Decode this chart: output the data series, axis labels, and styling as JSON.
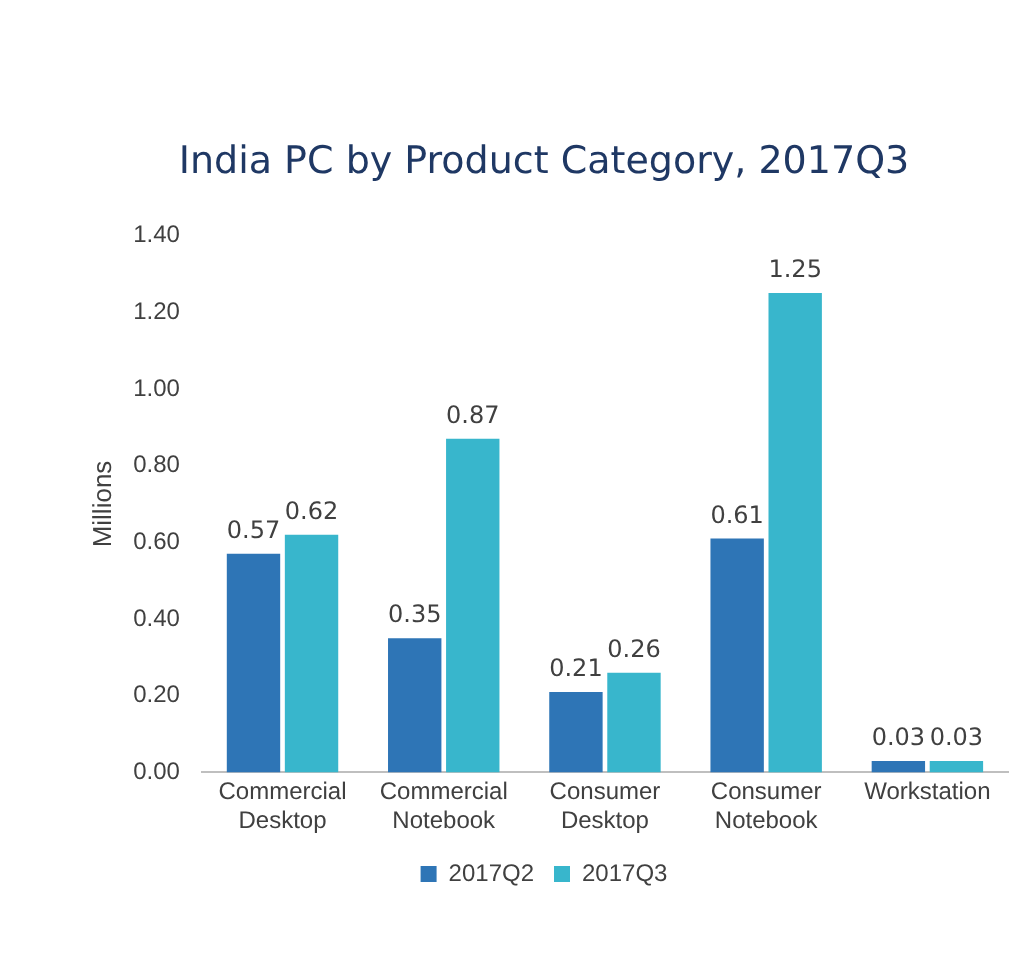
{
  "chart_data": {
    "type": "bar",
    "title": "India PC by Product Category, 2017Q3",
    "ylabel": "Millions",
    "categories": [
      "Commercial Desktop",
      "Commercial Notebook",
      "Consumer Desktop",
      "Consumer Notebook",
      "Workstation"
    ],
    "series": [
      {
        "name": "2017Q2",
        "color": "#2e75b6",
        "values": [
          0.57,
          0.35,
          0.21,
          0.61,
          0.03
        ]
      },
      {
        "name": "2017Q3",
        "color": "#38b6cc",
        "values": [
          0.62,
          0.87,
          0.26,
          1.25,
          0.03
        ]
      }
    ],
    "ylim": [
      0,
      1.4
    ],
    "yticks": [
      {
        "value": 0,
        "label": "0.00"
      },
      {
        "value": 0.2,
        "label": "0.20"
      },
      {
        "value": 0.4,
        "label": "0.40"
      },
      {
        "value": 0.6,
        "label": "0.60"
      },
      {
        "value": 0.8,
        "label": "0.80"
      },
      {
        "value": 1,
        "label": "1.00"
      },
      {
        "value": 1.2,
        "label": "1.20"
      },
      {
        "value": 1.4,
        "label": "1.40"
      }
    ],
    "grid": false,
    "legend": "bottom",
    "data_labels": true
  }
}
